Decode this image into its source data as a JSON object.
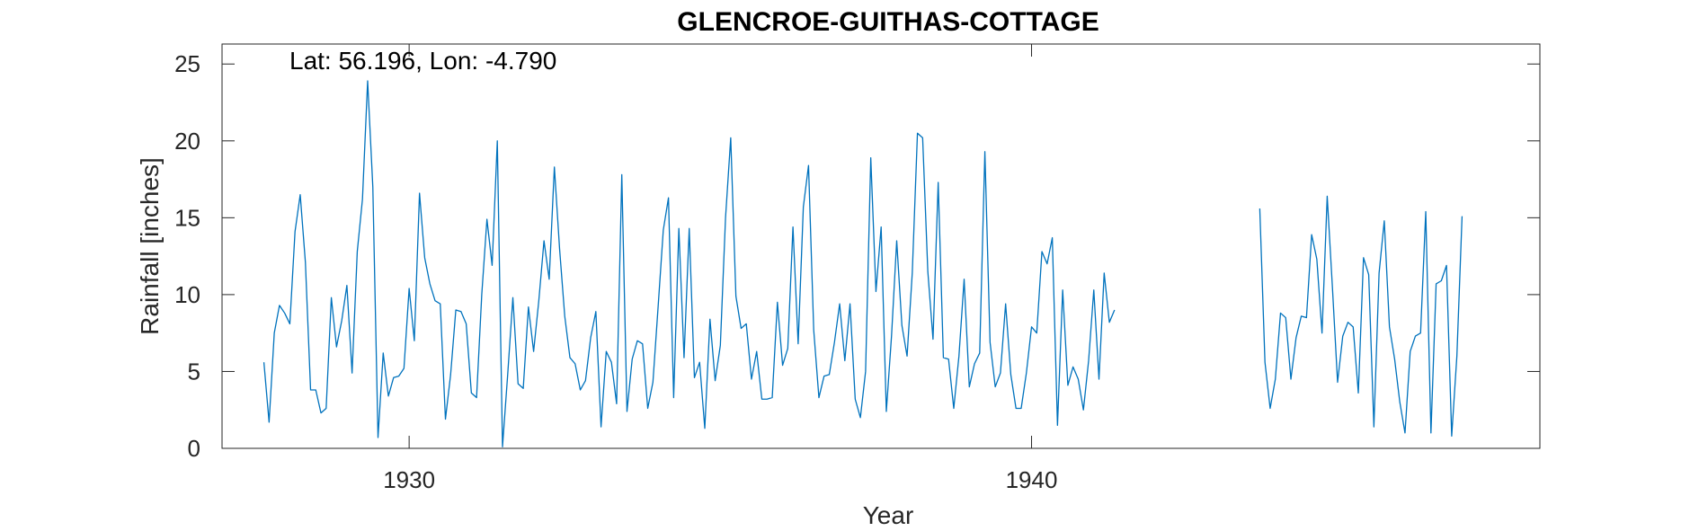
{
  "chart_data": {
    "type": "line",
    "title": "GLENCROE-GUITHAS-COTTAGE",
    "annotation": "Lat: 56.196, Lon: -4.790",
    "xlabel": "Year",
    "ylabel": "Rainfall [inches]",
    "xlim": [
      1926.994,
      1948.167
    ],
    "ylim": [
      0,
      26.3
    ],
    "xticks": [
      1930,
      1940
    ],
    "xtick_labels": [
      "1930",
      "1940"
    ],
    "yticks": [
      0,
      5,
      10,
      15,
      20,
      25
    ],
    "ytick_labels": [
      "0",
      "5",
      "10",
      "15",
      "20",
      "25"
    ],
    "grid": false,
    "colors": {
      "line": "#0072BD",
      "axes": "#262626"
    },
    "series": [
      {
        "start_year": 1927,
        "start_month": 9,
        "values": [
          5.6,
          1.7,
          7.5,
          9.3,
          8.8,
          8.1,
          14.1,
          16.5,
          12.1,
          3.8,
          3.8,
          2.3,
          2.6,
          9.8,
          6.6,
          8.3,
          10.6,
          4.9,
          12.8,
          16.2,
          23.9,
          17.0,
          0.7,
          6.2,
          3.4,
          4.6,
          4.7,
          5.2,
          10.4,
          7.0,
          16.6,
          12.4,
          10.7,
          9.6,
          9.4,
          1.9,
          4.8,
          9.0,
          8.9,
          8.1,
          3.6,
          3.3,
          10.0,
          14.9,
          11.9,
          20.0,
          0.1,
          4.8,
          9.8,
          4.2,
          3.9,
          9.2,
          6.3,
          9.6,
          13.5,
          11.0,
          18.3,
          13.0,
          8.6,
          5.9,
          5.5,
          3.8,
          4.4,
          7.2,
          8.9,
          1.4,
          6.3,
          5.6,
          2.9,
          17.8,
          2.4,
          5.8,
          7.0,
          6.8,
          2.6,
          4.3,
          9.2,
          14.2,
          16.3,
          3.3,
          14.3,
          5.9,
          14.3,
          4.6,
          5.6,
          1.3,
          8.4,
          4.4,
          6.7,
          15.0,
          20.2,
          9.9,
          7.8,
          8.1,
          4.5,
          6.3,
          3.2,
          3.2,
          3.3,
          9.5,
          5.4,
          6.5,
          14.4,
          6.8,
          15.7,
          18.4,
          7.7,
          3.3,
          4.7,
          4.8,
          6.9,
          9.4,
          5.7,
          9.4,
          3.2,
          2.0,
          5.0,
          18.9,
          10.2,
          14.4,
          2.4,
          7.3,
          13.5,
          8.0,
          6.0,
          11.4,
          20.5,
          20.2,
          11.5,
          7.1,
          17.3,
          5.9,
          5.8,
          2.6,
          6.0,
          11.0,
          4.0,
          5.5,
          6.2,
          19.3,
          6.9,
          4.0,
          4.9,
          9.4,
          4.8,
          2.6,
          2.6,
          4.9,
          7.9,
          7.5,
          12.8,
          12.0,
          13.7,
          1.5,
          10.3,
          4.1,
          5.3,
          4.5,
          2.5,
          5.7,
          10.3,
          4.5,
          11.4,
          8.2,
          9.0
        ]
      },
      {
        "start_year": 1943,
        "start_month": 9,
        "values": [
          15.6,
          5.6,
          2.6,
          4.5,
          8.8,
          8.5,
          4.5,
          7.2,
          8.6,
          8.5,
          13.9,
          12.3,
          7.5,
          16.4,
          10.5,
          4.3,
          7.3,
          8.2,
          7.9,
          3.6,
          12.4,
          11.3,
          1.4,
          11.4,
          14.8,
          7.9,
          5.8,
          3.0,
          1.0,
          6.3,
          7.3,
          7.5,
          15.4,
          1.0,
          10.7,
          10.9,
          11.9,
          0.8,
          6.0,
          15.1
        ]
      }
    ]
  }
}
